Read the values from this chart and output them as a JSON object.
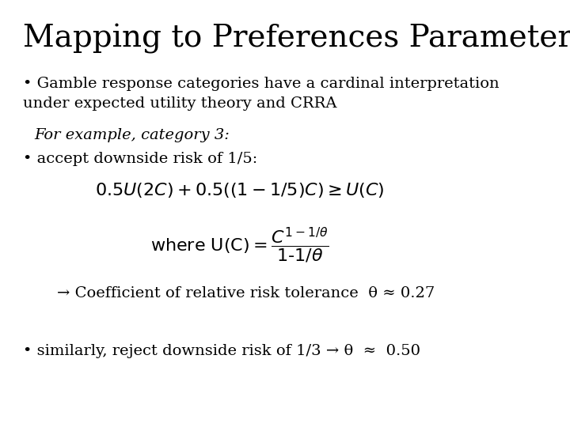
{
  "title": "Mapping to Preferences Parameters",
  "background_color": "#ffffff",
  "text_color": "#000000",
  "title_fontsize": 28,
  "body_fontsize": 14,
  "bullet1_line1": "• Gamble response categories have a cardinal interpretation",
  "bullet1_line2": "under expected utility theory and CRRA",
  "italic_label": "For example, category 3:",
  "bullet2": "• accept downside risk of 1/5:",
  "arrow_text": "→ Coefficient of relative risk tolerance  θ ≈ 0.27",
  "bullet3": "• similarly, reject downside risk of 1/3 → θ  ≈  0.50"
}
